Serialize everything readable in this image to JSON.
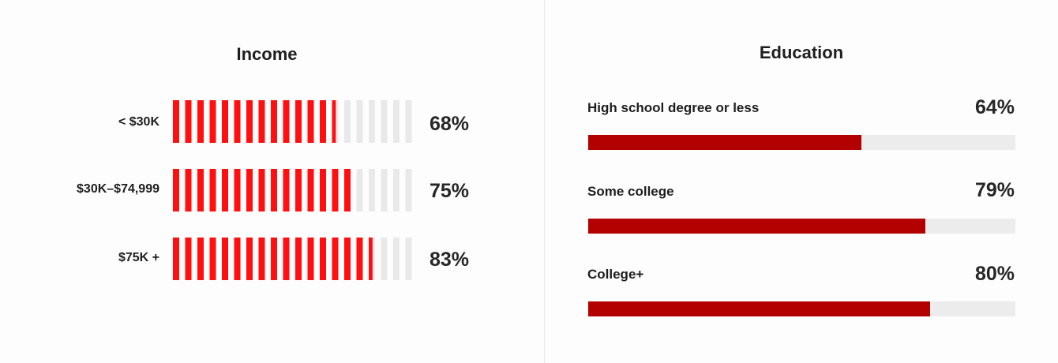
{
  "chart_data": [
    {
      "type": "bar",
      "title": "Income",
      "categories": [
        "< $30K",
        "$30K–$74,999",
        "$75K +"
      ],
      "values": [
        68,
        75,
        83
      ],
      "value_labels": [
        "68%",
        "75%",
        "83%"
      ],
      "ylim": [
        0,
        100
      ],
      "style": "striped-bars",
      "colors": {
        "fill": "#ff0f0f",
        "empty": "#e9e9e9"
      }
    },
    {
      "type": "bar",
      "title": "Education",
      "categories": [
        "High school degree or less",
        "Some college",
        "College+"
      ],
      "values": [
        64,
        79,
        80
      ],
      "value_labels": [
        "64%",
        "79%",
        "80%"
      ],
      "ylim": [
        0,
        100
      ],
      "style": "horizontal-progress-bars",
      "colors": {
        "fill": "#b30000",
        "track": "#ececec"
      }
    }
  ]
}
